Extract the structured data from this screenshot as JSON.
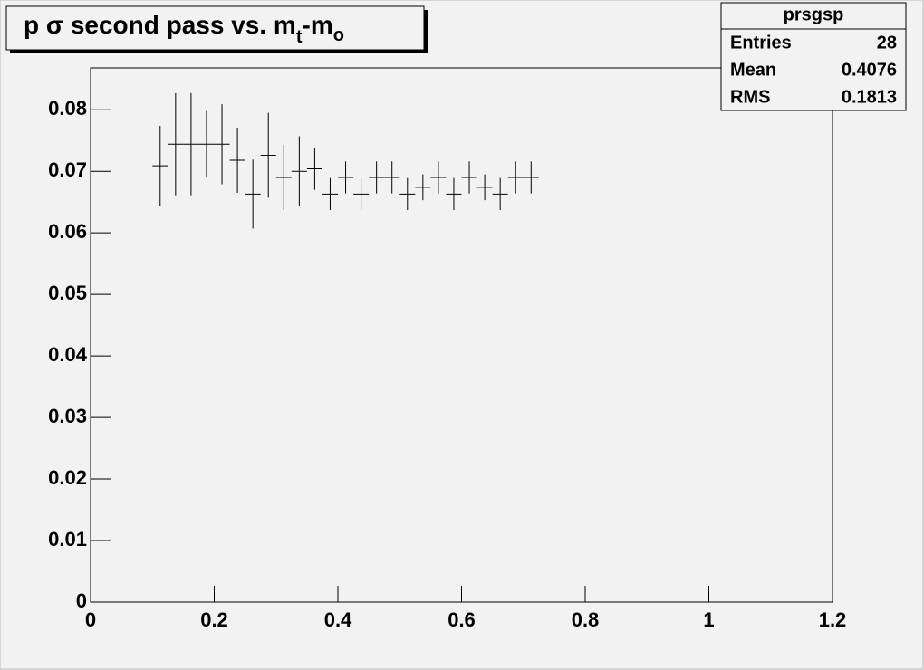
{
  "chart_data": {
    "type": "errorbar",
    "title": [
      "p σ second pass vs. m",
      "t",
      "-m",
      "o"
    ],
    "x": [
      0.1125,
      0.1375,
      0.1625,
      0.1875,
      0.2125,
      0.2375,
      0.2625,
      0.2875,
      0.3125,
      0.3375,
      0.3625,
      0.3875,
      0.4125,
      0.4375,
      0.4625,
      0.4875,
      0.5125,
      0.5375,
      0.5625,
      0.5875,
      0.6125,
      0.6375,
      0.6625,
      0.6875,
      0.7125
    ],
    "values": [
      0.0709,
      0.0744,
      0.0744,
      0.0744,
      0.0744,
      0.0718,
      0.0663,
      0.0726,
      0.069,
      0.07,
      0.0704,
      0.0663,
      0.069,
      0.0663,
      0.069,
      0.069,
      0.0663,
      0.0674,
      0.069,
      0.0663,
      0.069,
      0.0674,
      0.0663,
      0.069,
      0.069
    ],
    "errors": [
      0.0065,
      0.0083,
      0.0083,
      0.0054,
      0.0065,
      0.0053,
      0.0056,
      0.0069,
      0.0053,
      0.0057,
      0.0034,
      0.0026,
      0.0026,
      0.0026,
      0.0026,
      0.0026,
      0.0026,
      0.0021,
      0.0026,
      0.0026,
      0.0026,
      0.0021,
      0.0026,
      0.0026,
      0.0026
    ],
    "xerr": 0.0125,
    "color": "#000000",
    "xlim": [
      0,
      1.2
    ],
    "xticks": [
      0,
      0.2,
      0.4,
      0.6,
      0.8,
      1,
      1.2
    ],
    "ylim": [
      0,
      0.0868
    ],
    "yticks": [
      0,
      0.01,
      0.02,
      0.03,
      0.04,
      0.05,
      0.06,
      0.07,
      0.08
    ],
    "stats": {
      "title": "prsgsp",
      "rows": [
        [
          "Entries",
          28
        ],
        [
          "Mean",
          0.4076
        ],
        [
          "RMS",
          0.1813
        ]
      ]
    }
  }
}
